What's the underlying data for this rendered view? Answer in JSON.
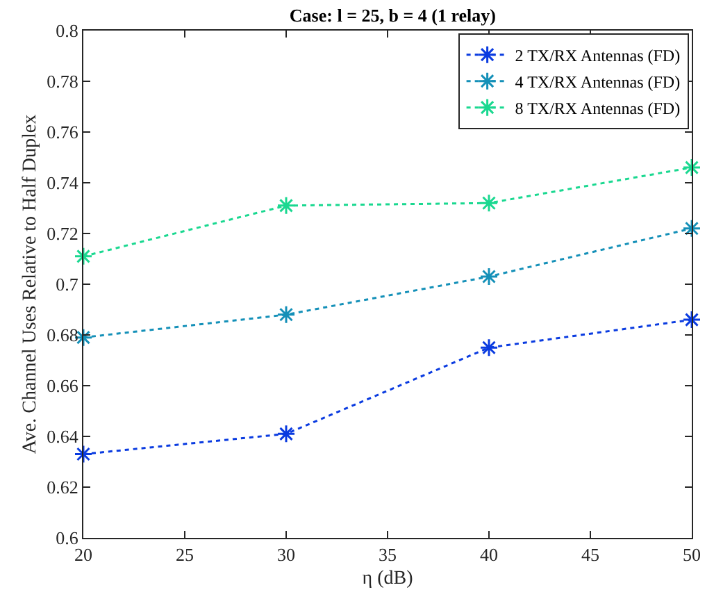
{
  "chart_data": {
    "type": "line",
    "title": "Case: l = 25, b = 4 (1 relay)",
    "xlabel": "η (dB)",
    "ylabel": "Ave. Channel Uses Relative to Half Duplex",
    "x": [
      20,
      30,
      40,
      50
    ],
    "series": [
      {
        "name": "2 TX/RX Antennas (FD)",
        "color": "#0a3be0",
        "values": [
          0.633,
          0.641,
          0.675,
          0.686
        ]
      },
      {
        "name": "4 TX/RX Antennas (FD)",
        "color": "#1490b8",
        "values": [
          0.679,
          0.688,
          0.703,
          0.722
        ]
      },
      {
        "name": "8 TX/RX Antennas (FD)",
        "color": "#1ad890",
        "values": [
          0.711,
          0.731,
          0.732,
          0.746
        ]
      }
    ],
    "xlim": [
      20,
      50
    ],
    "xticks": [
      20,
      25,
      30,
      35,
      40,
      45,
      50
    ],
    "ylim": [
      0.6,
      0.8
    ],
    "yticks": [
      {
        "value": 0.6,
        "label": "0.6"
      },
      0.62,
      0.64,
      0.66,
      0.68,
      {
        "value": 0.7,
        "label": "0.7"
      },
      0.72,
      0.74,
      0.76,
      0.78,
      {
        "value": 0.8,
        "label": "0.8"
      }
    ],
    "legend": "top right",
    "marker": "cross",
    "line_style": "dotted"
  }
}
